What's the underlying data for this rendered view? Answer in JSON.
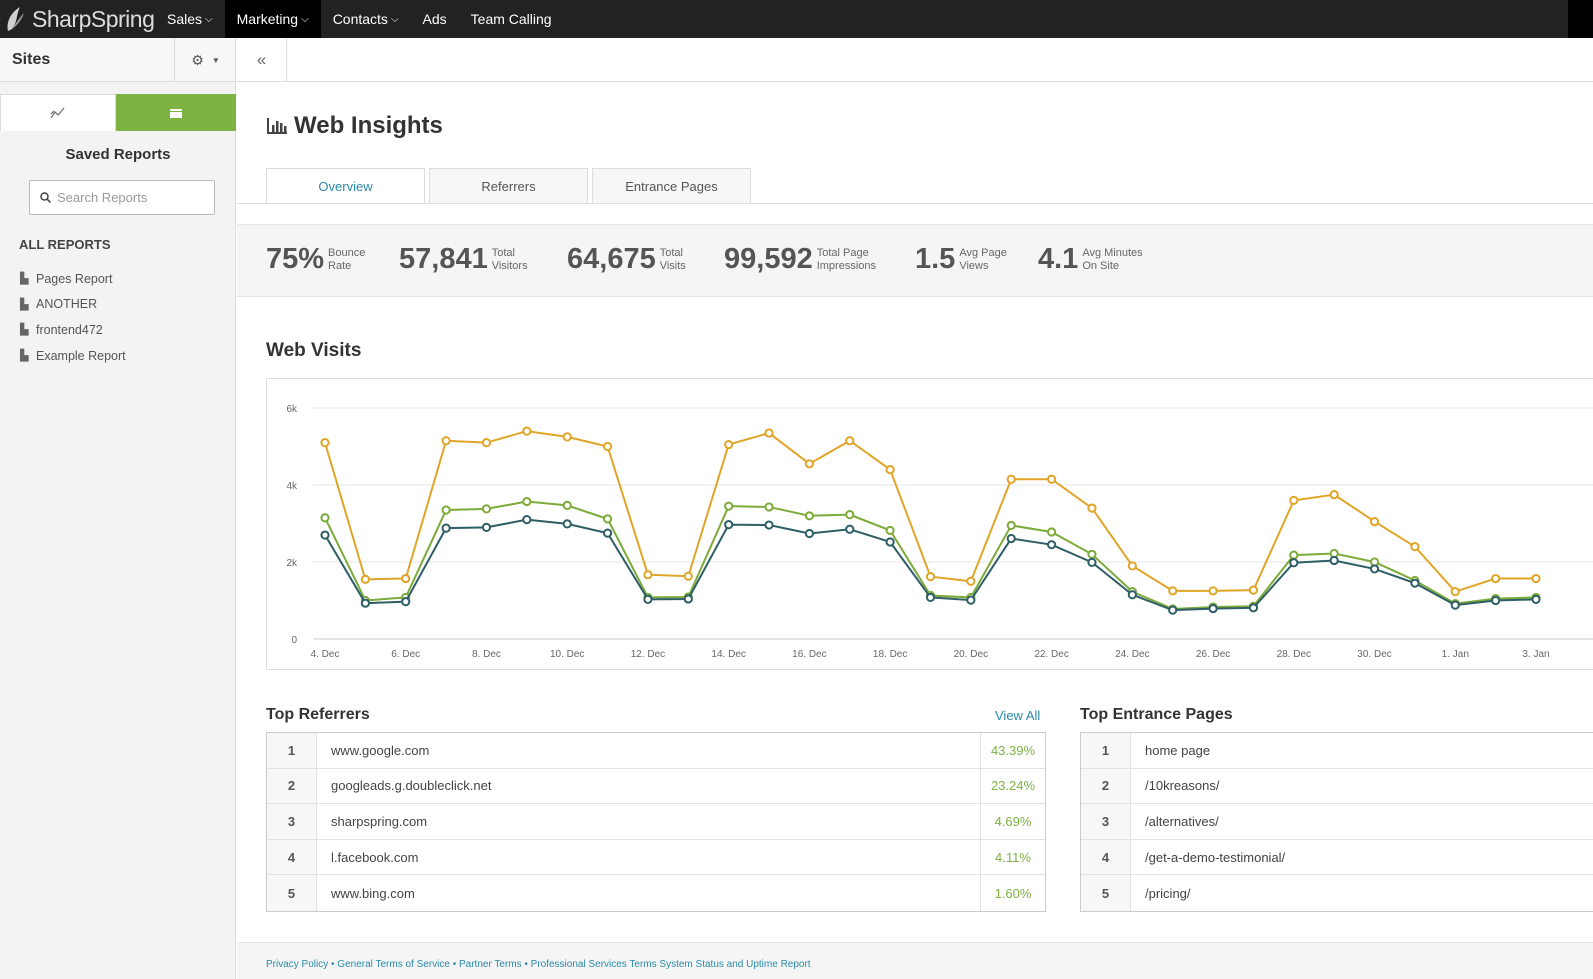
{
  "app": {
    "brand": "SharpSpring"
  },
  "topnav": {
    "items": [
      {
        "label": "Sales",
        "chevron": true
      },
      {
        "label": "Marketing",
        "chevron": true,
        "active": true
      },
      {
        "label": "Contacts",
        "chevron": true
      },
      {
        "label": "Ads",
        "chevron": false
      },
      {
        "label": "Team Calling",
        "chevron": false
      }
    ]
  },
  "sidebar": {
    "title": "Sites",
    "saved_reports_title": "Saved Reports",
    "search_placeholder": "Search Reports",
    "all_reports_label": "ALL REPORTS",
    "reports": [
      "Pages Report",
      "ANOTHER",
      "frontend472",
      "Example Report"
    ]
  },
  "main": {
    "title": "Web Insights",
    "tabs": [
      {
        "label": "Overview",
        "active": true
      },
      {
        "label": "Referrers",
        "active": false
      },
      {
        "label": "Entrance Pages",
        "active": false
      }
    ],
    "stats": [
      {
        "value": "75%",
        "label1": "Bounce",
        "label2": "Rate"
      },
      {
        "value": "57,841",
        "label1": "Total",
        "label2": "Visitors"
      },
      {
        "value": "64,675",
        "label1": "Total",
        "label2": "Visits"
      },
      {
        "value": "99,592",
        "label1": "Total Page",
        "label2": "Impressions"
      },
      {
        "value": "1.5",
        "label1": "Avg Page",
        "label2": "Views"
      },
      {
        "value": "4.1",
        "label1": "Avg Minutes",
        "label2": "On Site"
      }
    ],
    "web_visits_title": "Web Visits",
    "top_referrers_title": "Top Referrers",
    "view_all_label": "View All",
    "top_referrers": [
      {
        "rank": "1",
        "name": "www.google.com",
        "pct": "43.39%"
      },
      {
        "rank": "2",
        "name": "googleads.g.doubleclick.net",
        "pct": "23.24%"
      },
      {
        "rank": "3",
        "name": "sharpspring.com",
        "pct": "4.69%"
      },
      {
        "rank": "4",
        "name": "l.facebook.com",
        "pct": "4.11%"
      },
      {
        "rank": "5",
        "name": "www.bing.com",
        "pct": "1.60%"
      }
    ],
    "top_entrance_title": "Top Entrance Pages",
    "top_entrance": [
      {
        "rank": "1",
        "name": "home page"
      },
      {
        "rank": "2",
        "name": "/10kreasons/"
      },
      {
        "rank": "3",
        "name": "/alternatives/"
      },
      {
        "rank": "4",
        "name": "/get-a-demo-testimonial/"
      },
      {
        "rank": "5",
        "name": "/pricing/"
      }
    ],
    "footer_links": "Privacy Policy • General Terms of Service • Partner Terms • Professional Services Terms System Status and Uptime Report"
  },
  "colors": {
    "accent_green": "#7cb342",
    "link_blue": "#2a8ba8",
    "series_orange": "#e0a526",
    "series_green": "#7cab3a",
    "series_dark": "#2e5e66"
  },
  "chart_data": {
    "type": "line",
    "x": [
      "4. Dec",
      "5. Dec",
      "6. Dec",
      "7. Dec",
      "8. Dec",
      "9. Dec",
      "10. Dec",
      "11. Dec",
      "12. Dec",
      "13. Dec",
      "14. Dec",
      "15. Dec",
      "16. Dec",
      "17. Dec",
      "18. Dec",
      "19. Dec",
      "20. Dec",
      "21. Dec",
      "22. Dec",
      "23. Dec",
      "24. Dec",
      "25. Dec",
      "26. Dec",
      "27. Dec",
      "28. Dec",
      "29. Dec",
      "30. Dec",
      "31. Dec",
      "1. Jan",
      "2. Jan",
      "3. Jan"
    ],
    "x_tick_labels": [
      "4. Dec",
      "6. Dec",
      "8. Dec",
      "10. Dec",
      "12. Dec",
      "14. Dec",
      "16. Dec",
      "18. Dec",
      "20. Dec",
      "22. Dec",
      "24. Dec",
      "26. Dec",
      "28. Dec",
      "30. Dec",
      "1. Jan",
      "3. Jan"
    ],
    "y_tick_labels": [
      "0",
      "2k",
      "4k",
      "6k"
    ],
    "ylim": [
      0,
      6000
    ],
    "series": [
      {
        "color": "#e0a526",
        "values": [
          5100,
          1550,
          1570,
          5150,
          5100,
          5400,
          5250,
          5000,
          1670,
          1630,
          5050,
          5350,
          4550,
          5150,
          4400,
          1620,
          1500,
          4150,
          4150,
          3400,
          1900,
          1250,
          1250,
          1270,
          3600,
          3750,
          3050,
          2400,
          1230,
          1570,
          1570
        ]
      },
      {
        "color": "#7cab3a",
        "values": [
          3150,
          1000,
          1080,
          3350,
          3380,
          3570,
          3470,
          3120,
          1080,
          1090,
          3450,
          3430,
          3200,
          3230,
          2820,
          1130,
          1080,
          2950,
          2780,
          2200,
          1230,
          780,
          830,
          850,
          2180,
          2220,
          2000,
          1520,
          920,
          1050,
          1080
        ]
      },
      {
        "color": "#2e5e66",
        "values": [
          2700,
          930,
          970,
          2880,
          2900,
          3100,
          2990,
          2750,
          1030,
          1040,
          2970,
          2960,
          2740,
          2850,
          2520,
          1080,
          1010,
          2610,
          2450,
          1990,
          1150,
          750,
          790,
          810,
          1980,
          2040,
          1820,
          1450,
          880,
          1000,
          1030
        ]
      }
    ]
  }
}
